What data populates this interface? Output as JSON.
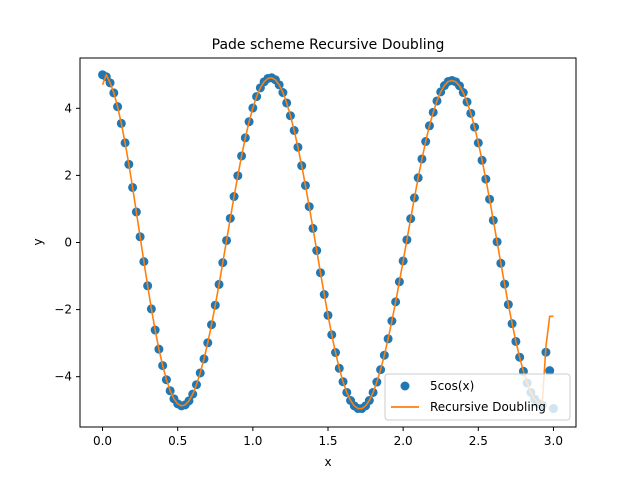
{
  "chart_data": {
    "type": "line",
    "title": "Pade scheme Recursive Doubling",
    "xlabel": "x",
    "ylabel": "y",
    "xlim": [
      -0.15,
      3.15
    ],
    "ylim": [
      -5.5,
      5.5
    ],
    "x_ticks": [
      "0.0",
      "0.5",
      "1.0",
      "1.5",
      "2.0",
      "2.5",
      "3.0"
    ],
    "y_ticks": [
      "−4",
      "−2",
      "0",
      "2",
      "4"
    ],
    "x_tick_values": [
      0,
      0.5,
      1.0,
      1.5,
      2.0,
      2.5,
      3.0
    ],
    "y_tick_values": [
      -4,
      -2,
      0,
      2,
      4
    ],
    "legend_position": "lower-right",
    "grid": false,
    "series": [
      {
        "name": "5cos(x)",
        "kind": "scatter",
        "color": "#1f77b4",
        "x": [
          0.0,
          0.025,
          0.05,
          0.075,
          0.1,
          0.125,
          0.15,
          0.175,
          0.2,
          0.225,
          0.25,
          0.275,
          0.3,
          0.325,
          0.35,
          0.375,
          0.4,
          0.425,
          0.45,
          0.475,
          0.5,
          0.525,
          0.55,
          0.575,
          0.6,
          0.625,
          0.65,
          0.675,
          0.7,
          0.725,
          0.75,
          0.775,
          0.8,
          0.825,
          0.85,
          0.875,
          0.9,
          0.925,
          0.95,
          0.975,
          1.0,
          1.025,
          1.05,
          1.075,
          1.1,
          1.125,
          1.15,
          1.175,
          1.2,
          1.225,
          1.25,
          1.275,
          1.3,
          1.325,
          1.35,
          1.375,
          1.4,
          1.425,
          1.45,
          1.475,
          1.5,
          1.525,
          1.55,
          1.575,
          1.6,
          1.625,
          1.65,
          1.675,
          1.7,
          1.725,
          1.75,
          1.775,
          1.8,
          1.825,
          1.85,
          1.875,
          1.9,
          1.925,
          1.95,
          1.975,
          2.0,
          2.025,
          2.05,
          2.075,
          2.1,
          2.125,
          2.15,
          2.175,
          2.2,
          2.225,
          2.25,
          2.275,
          2.3,
          2.325,
          2.35,
          2.375,
          2.4,
          2.425,
          2.45,
          2.475,
          2.5,
          2.525,
          2.55,
          2.575,
          2.6,
          2.625,
          2.65,
          2.675,
          2.7,
          2.725,
          2.75,
          2.775,
          2.8,
          2.825,
          2.85,
          2.875,
          2.9,
          2.925,
          2.95,
          2.975,
          3.0
        ],
        "y": [
          5.0,
          4.94,
          4.76,
          4.46,
          4.05,
          3.55,
          2.97,
          2.33,
          1.64,
          0.91,
          0.17,
          -0.57,
          -1.29,
          -1.98,
          -2.61,
          -3.18,
          -3.67,
          -4.09,
          -4.42,
          -4.66,
          -4.81,
          -4.87,
          -4.84,
          -4.72,
          -4.52,
          -4.24,
          -3.89,
          -3.47,
          -2.99,
          -2.45,
          -1.87,
          -1.25,
          -0.6,
          0.06,
          0.72,
          1.37,
          1.99,
          2.58,
          3.12,
          3.6,
          4.01,
          4.35,
          4.61,
          4.79,
          4.89,
          4.91,
          4.85,
          4.7,
          4.47,
          4.16,
          3.78,
          3.34,
          2.84,
          2.29,
          1.7,
          1.07,
          0.42,
          -0.24,
          -0.9,
          -1.55,
          -2.17,
          -2.75,
          -3.28,
          -3.75,
          -4.15,
          -4.47,
          -4.71,
          -4.87,
          -4.95,
          -4.95,
          -4.87,
          -4.71,
          -4.47,
          -4.16,
          -3.79,
          -3.36,
          -2.87,
          -2.34,
          -1.77,
          -1.17,
          -0.55,
          0.08,
          0.71,
          1.33,
          1.93,
          2.49,
          3.01,
          3.48,
          3.88,
          4.22,
          4.49,
          4.68,
          4.8,
          4.83,
          4.79,
          4.67,
          4.47,
          4.19,
          3.85,
          3.44,
          2.97,
          2.45,
          1.89,
          1.29,
          0.66,
          0.02,
          -0.62,
          -1.24,
          -1.85,
          -2.42,
          -2.95,
          -3.42,
          -3.84,
          -4.19,
          -4.47,
          -4.67,
          -4.8,
          -4.85,
          -3.27,
          -3.82,
          -4.95
        ]
      },
      {
        "name": "Recursive Doubling",
        "kind": "line",
        "color": "#ff7f0e",
        "x": [
          0.0,
          0.025,
          0.05,
          0.075,
          0.1,
          0.125,
          0.15,
          0.175,
          0.2,
          0.225,
          0.25,
          0.275,
          0.3,
          0.325,
          0.35,
          0.375,
          0.4,
          0.425,
          0.45,
          0.475,
          0.5,
          0.525,
          0.55,
          0.575,
          0.6,
          0.625,
          0.65,
          0.675,
          0.7,
          0.725,
          0.75,
          0.775,
          0.8,
          0.825,
          0.85,
          0.875,
          0.9,
          0.925,
          0.95,
          0.975,
          1.0,
          1.025,
          1.05,
          1.075,
          1.1,
          1.125,
          1.15,
          1.175,
          1.2,
          1.225,
          1.25,
          1.275,
          1.3,
          1.325,
          1.35,
          1.375,
          1.4,
          1.425,
          1.45,
          1.475,
          1.5,
          1.525,
          1.55,
          1.575,
          1.6,
          1.625,
          1.65,
          1.675,
          1.7,
          1.725,
          1.75,
          1.775,
          1.8,
          1.825,
          1.85,
          1.875,
          1.9,
          1.925,
          1.95,
          1.975,
          2.0,
          2.025,
          2.05,
          2.075,
          2.1,
          2.125,
          2.15,
          2.175,
          2.2,
          2.225,
          2.25,
          2.275,
          2.3,
          2.325,
          2.35,
          2.375,
          2.4,
          2.425,
          2.45,
          2.475,
          2.5,
          2.525,
          2.55,
          2.575,
          2.6,
          2.625,
          2.65,
          2.675,
          2.7,
          2.725,
          2.75,
          2.775,
          2.8,
          2.825,
          2.85,
          2.875,
          2.9,
          2.925,
          2.95,
          2.975,
          3.0
        ],
        "y": [
          4.7,
          5.0,
          4.76,
          4.46,
          4.05,
          3.55,
          2.97,
          2.33,
          1.64,
          0.91,
          0.17,
          -0.57,
          -1.29,
          -1.98,
          -2.61,
          -3.18,
          -3.67,
          -4.09,
          -4.42,
          -4.66,
          -4.81,
          -4.87,
          -4.84,
          -4.72,
          -4.52,
          -4.24,
          -3.89,
          -3.47,
          -2.99,
          -2.45,
          -1.87,
          -1.25,
          -0.6,
          0.06,
          0.72,
          1.37,
          1.99,
          2.58,
          3.12,
          3.6,
          4.01,
          4.35,
          4.61,
          4.79,
          4.89,
          4.91,
          4.85,
          4.7,
          4.47,
          4.16,
          3.78,
          3.34,
          2.84,
          2.29,
          1.7,
          1.07,
          0.42,
          -0.24,
          -0.9,
          -1.55,
          -2.17,
          -2.75,
          -3.28,
          -3.75,
          -4.15,
          -4.47,
          -4.71,
          -4.87,
          -4.95,
          -4.95,
          -4.87,
          -4.71,
          -4.47,
          -4.16,
          -3.79,
          -3.36,
          -2.87,
          -2.34,
          -1.77,
          -1.17,
          -0.55,
          0.08,
          0.71,
          1.33,
          1.93,
          2.49,
          3.01,
          3.48,
          3.88,
          4.22,
          4.49,
          4.68,
          4.8,
          4.83,
          4.79,
          4.67,
          4.47,
          4.19,
          3.85,
          3.44,
          2.97,
          2.45,
          1.89,
          1.29,
          0.66,
          0.02,
          -0.62,
          -1.24,
          -1.85,
          -2.42,
          -2.95,
          -3.42,
          -3.84,
          -4.19,
          -4.47,
          -4.67,
          -4.8,
          -4.85,
          -3.1,
          -2.2,
          -2.2
        ]
      }
    ]
  }
}
